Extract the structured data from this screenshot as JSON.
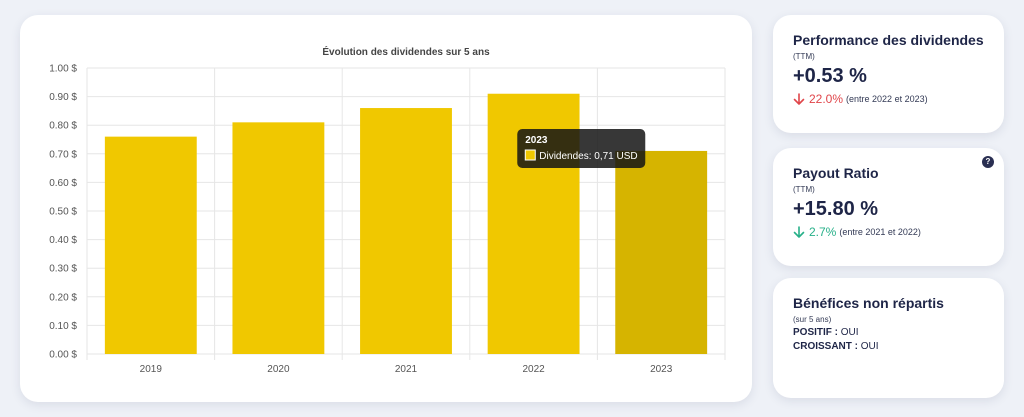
{
  "chart_data": {
    "type": "bar",
    "title": "Évolution des dividendes sur 5 ans",
    "categories": [
      "2019",
      "2020",
      "2021",
      "2022",
      "2023"
    ],
    "series": [
      {
        "name": "Dividendes",
        "values": [
          0.76,
          0.81,
          0.86,
          0.91,
          0.71
        ]
      }
    ],
    "ylim": [
      0,
      1.0
    ],
    "yticks": [
      "0.00 $",
      "0.10 $",
      "0.20 $",
      "0.30 $",
      "0.40 $",
      "0.50 $",
      "0.60 $",
      "0.70 $",
      "0.80 $",
      "0.90 $",
      "1.00 $"
    ],
    "grid": true,
    "bar_color": "#f0c800",
    "highlight_color": "#d6b400",
    "highlighted_index": 4,
    "tooltip": {
      "title": "2023",
      "label": "Dividendes: 0,71 USD"
    }
  },
  "kpis": {
    "performance": {
      "title": "Performance des dividendes",
      "subtitle": "(TTM)",
      "value": "+0.53 %",
      "change_value": "22.0%",
      "change_text": "(entre 2022 et 2023)",
      "direction": "down",
      "color": "#e0454a"
    },
    "payout": {
      "title": "Payout Ratio",
      "help": "?",
      "subtitle": "(TTM)",
      "value": "+15.80 %",
      "change_value": "2.7%",
      "change_text": "(entre 2021 et 2022)",
      "direction": "down",
      "color": "#27b089"
    },
    "retained": {
      "title": "Bénéfices non répartis",
      "subtitle": "(sur 5 ans)",
      "positif_label": "POSITIF :",
      "positif_value": "OUI",
      "croissant_label": "CROISSANT :",
      "croissant_value": "OUI"
    }
  }
}
